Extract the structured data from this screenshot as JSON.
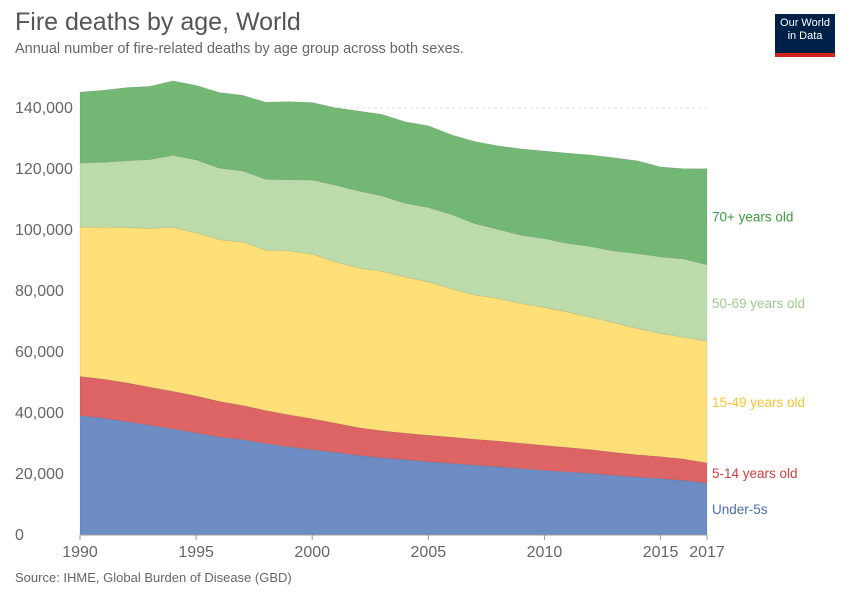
{
  "header": {
    "title": "Fire deaths by age, World",
    "subtitle": "Annual number of fire-related deaths by age group across both sexes."
  },
  "logo": {
    "line1": "Our World",
    "line2": "in Data"
  },
  "footer": {
    "source": "Source: IHME, Global Burden of Disease (GBD)"
  },
  "chart_data": {
    "type": "area",
    "stacked": true,
    "title": "Fire deaths by age, World",
    "subtitle": "Annual number of fire-related deaths by age group across both sexes.",
    "xlim": [
      1990,
      2017
    ],
    "ylim": [
      0,
      140000
    ],
    "x_ticks": [
      1990,
      1995,
      2000,
      2005,
      2010,
      2015,
      2017
    ],
    "x_tick_labels": [
      "1990",
      "1995",
      "2000",
      "2005",
      "2010",
      "2015",
      "2017"
    ],
    "y_ticks": [
      0,
      20000,
      40000,
      60000,
      80000,
      100000,
      120000,
      140000
    ],
    "y_tick_labels": [
      "0",
      "20,000",
      "40,000",
      "60,000",
      "80,000",
      "100,000",
      "120,000",
      "140,000"
    ],
    "grid": true,
    "legend": "right-side direct labels",
    "x": [
      1990,
      1991,
      1992,
      1993,
      1994,
      1995,
      1996,
      1997,
      1998,
      1999,
      2000,
      2001,
      2002,
      2003,
      2004,
      2005,
      2006,
      2007,
      2008,
      2009,
      2010,
      2011,
      2012,
      2013,
      2014,
      2015,
      2016,
      2017
    ],
    "series": [
      {
        "name": "Under-5s",
        "color": "#6d8cc3",
        "values": [
          39200,
          38300,
          37200,
          36000,
          34800,
          33500,
          32100,
          31300,
          30000,
          28900,
          28000,
          27100,
          26100,
          25300,
          24700,
          24000,
          23500,
          22900,
          22400,
          21800,
          21200,
          20700,
          20200,
          19600,
          19000,
          18500,
          17900,
          17000
        ]
      },
      {
        "name": "5-14 years old",
        "color": "#dd6464",
        "values": [
          12800,
          12800,
          12700,
          12500,
          12300,
          12100,
          11700,
          11200,
          10800,
          10500,
          10100,
          9600,
          9100,
          8900,
          8700,
          8700,
          8600,
          8500,
          8400,
          8300,
          8200,
          8000,
          7800,
          7500,
          7300,
          7200,
          7000,
          6600
        ]
      },
      {
        "name": "15-49 years old",
        "color": "#ffdf78",
        "values": [
          49000,
          49800,
          50900,
          52000,
          53800,
          53500,
          53000,
          53600,
          52600,
          53800,
          54000,
          52900,
          52300,
          52300,
          51200,
          50300,
          48600,
          47300,
          46800,
          45800,
          45200,
          44400,
          43400,
          42500,
          41400,
          40400,
          39900,
          39900
        ]
      },
      {
        "name": "50-69 years old",
        "color": "#bbdcaa",
        "values": [
          21000,
          21300,
          21900,
          22600,
          23600,
          23900,
          23500,
          23300,
          23200,
          23300,
          24300,
          25100,
          25300,
          24700,
          24200,
          24400,
          24400,
          23400,
          22600,
          22400,
          22600,
          22500,
          23200,
          23500,
          24600,
          25100,
          25700,
          25100
        ]
      },
      {
        "name": "70+ years old",
        "color": "#72b774",
        "values": [
          23200,
          23600,
          24000,
          24000,
          24400,
          24400,
          24800,
          24800,
          25300,
          25600,
          25400,
          25400,
          26200,
          26700,
          26700,
          26800,
          26100,
          26900,
          27400,
          28300,
          28700,
          29600,
          30000,
          30600,
          30400,
          29500,
          29600,
          31500
        ]
      }
    ]
  }
}
